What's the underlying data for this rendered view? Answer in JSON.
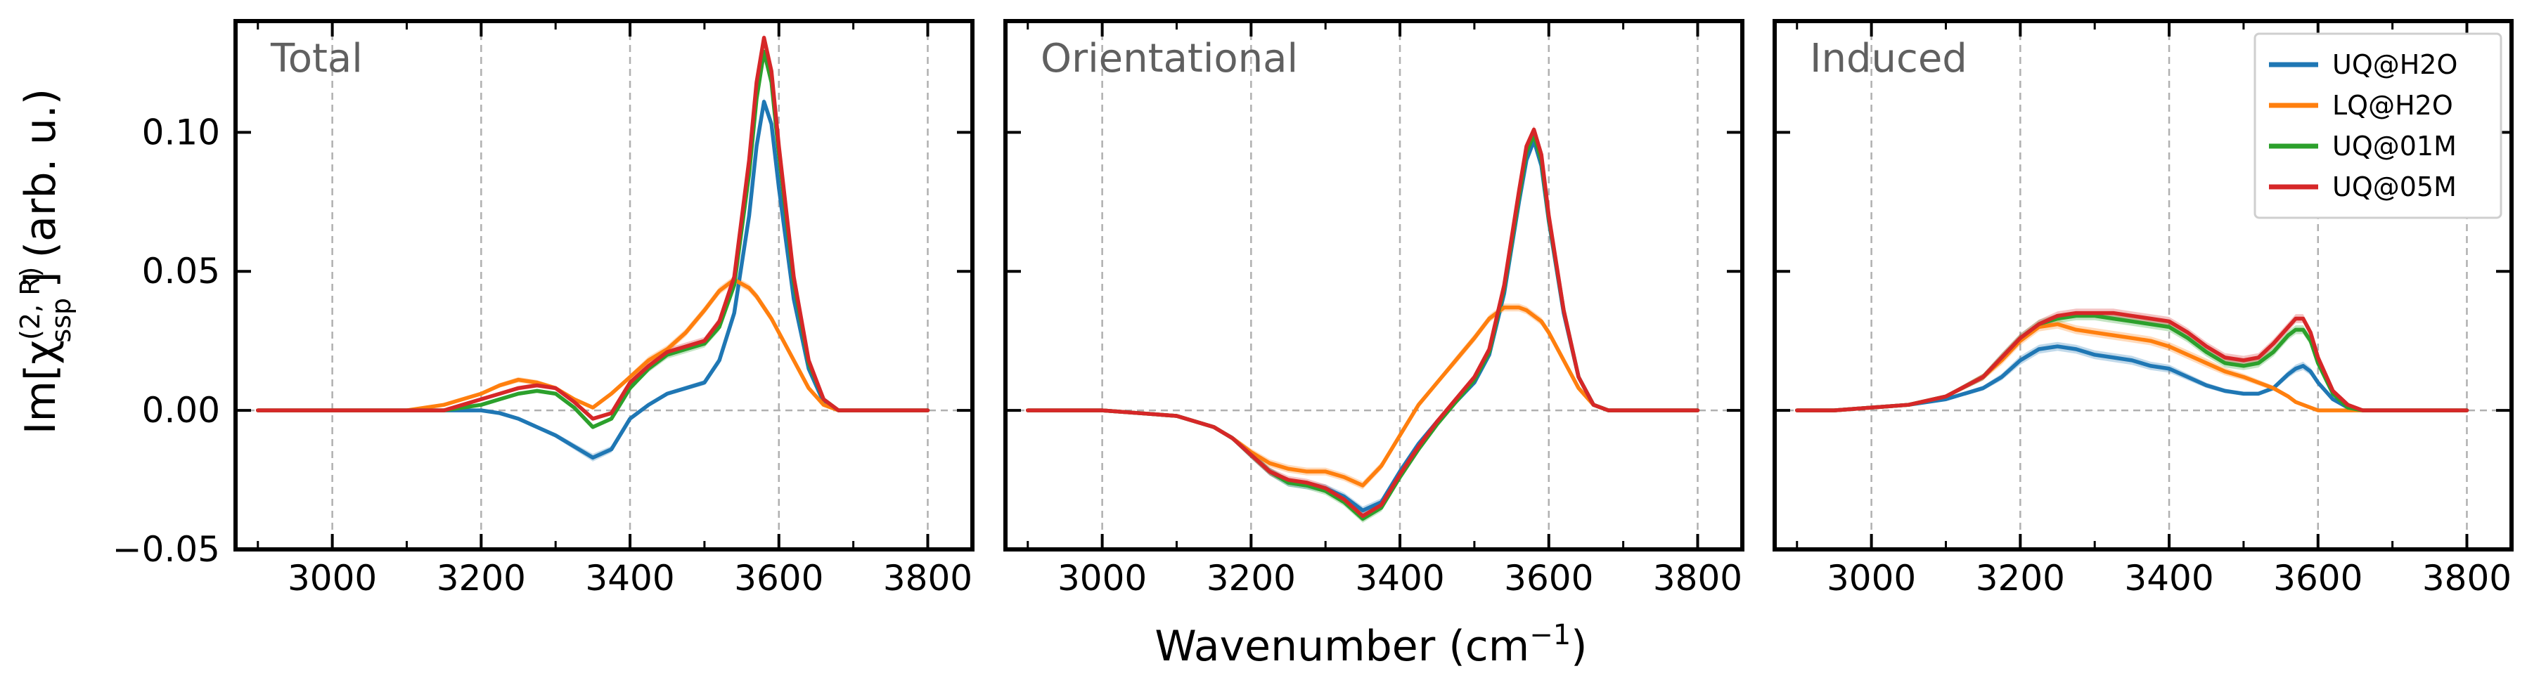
{
  "chart_data": {
    "type": "line",
    "ylabel": "Im[χ(2,R)ssp] (arb. u.)",
    "ylabel_parts": {
      "prefix": "Im[χ",
      "sup": "(2, R)",
      "sub": "ssp",
      "suffix": "] (arb. u.)"
    },
    "xlabel": "Wavenumber (cm⁻¹)",
    "xlabel_parts": {
      "main": "Wavenumber (cm",
      "sup": "−1",
      "close": ")"
    },
    "xlim": [
      2870,
      3860
    ],
    "ylim": [
      -0.05,
      0.14
    ],
    "xticks": [
      3000,
      3200,
      3400,
      3600,
      3800
    ],
    "xtick_labels": [
      "3000",
      "3200",
      "3400",
      "3600",
      "3800"
    ],
    "yticks": [
      -0.05,
      0.0,
      0.05,
      0.1
    ],
    "ytick_labels": [
      "−0.05",
      "0.00",
      "0.05",
      "0.10"
    ],
    "grid": true,
    "legend_position": "top-right (Induced panel)",
    "legend": [
      "UQ@H2O",
      "LQ@H2O",
      "UQ@01M",
      "UQ@05M"
    ],
    "colors": {
      "UQ@H2O": "#1f77b4",
      "LQ@H2O": "#ff7f0e",
      "UQ@01M": "#2ca02c",
      "UQ@05M": "#d62728"
    },
    "x": [
      2900,
      2950,
      3000,
      3050,
      3100,
      3150,
      3175,
      3200,
      3225,
      3250,
      3275,
      3300,
      3325,
      3350,
      3375,
      3400,
      3425,
      3450,
      3475,
      3500,
      3520,
      3540,
      3560,
      3570,
      3580,
      3590,
      3600,
      3620,
      3640,
      3660,
      3680,
      3700,
      3750,
      3800
    ],
    "panels": [
      {
        "title": "Total",
        "series": [
          {
            "name": "UQ@H2O",
            "values": [
              0.0,
              0.0,
              0.0,
              0.0,
              0.0,
              0.0,
              0.0,
              0.0,
              -0.001,
              -0.003,
              -0.006,
              -0.009,
              -0.013,
              -0.017,
              -0.014,
              -0.003,
              0.002,
              0.006,
              0.008,
              0.01,
              0.018,
              0.035,
              0.07,
              0.095,
              0.111,
              0.103,
              0.08,
              0.04,
              0.015,
              0.003,
              0.0,
              0.0,
              0.0,
              0.0
            ]
          },
          {
            "name": "LQ@H2O",
            "values": [
              0.0,
              0.0,
              0.0,
              0.0,
              0.0,
              0.002,
              0.004,
              0.006,
              0.009,
              0.011,
              0.01,
              0.008,
              0.004,
              0.001,
              0.006,
              0.012,
              0.018,
              0.022,
              0.028,
              0.036,
              0.043,
              0.047,
              0.044,
              0.041,
              0.037,
              0.033,
              0.028,
              0.018,
              0.008,
              0.002,
              0.0,
              0.0,
              0.0,
              0.0
            ]
          },
          {
            "name": "UQ@01M",
            "values": [
              0.0,
              0.0,
              0.0,
              0.0,
              0.0,
              0.0,
              0.001,
              0.002,
              0.004,
              0.006,
              0.007,
              0.006,
              0.001,
              -0.006,
              -0.003,
              0.008,
              0.015,
              0.02,
              0.022,
              0.024,
              0.03,
              0.045,
              0.085,
              0.112,
              0.129,
              0.118,
              0.092,
              0.046,
              0.017,
              0.004,
              0.0,
              0.0,
              0.0,
              0.0
            ]
          },
          {
            "name": "UQ@05M",
            "values": [
              0.0,
              0.0,
              0.0,
              0.0,
              0.0,
              0.0,
              0.002,
              0.004,
              0.006,
              0.008,
              0.009,
              0.008,
              0.003,
              -0.003,
              -0.001,
              0.01,
              0.016,
              0.021,
              0.023,
              0.025,
              0.032,
              0.048,
              0.09,
              0.118,
              0.134,
              0.122,
              0.095,
              0.048,
              0.018,
              0.004,
              0.0,
              0.0,
              0.0,
              0.0
            ]
          }
        ]
      },
      {
        "title": "Orientational",
        "series": [
          {
            "name": "UQ@H2O",
            "values": [
              0.0,
              0.0,
              0.0,
              -0.001,
              -0.002,
              -0.006,
              -0.01,
              -0.016,
              -0.022,
              -0.026,
              -0.027,
              -0.028,
              -0.031,
              -0.036,
              -0.033,
              -0.022,
              -0.012,
              -0.004,
              0.003,
              0.01,
              0.02,
              0.042,
              0.075,
              0.09,
              0.097,
              0.088,
              0.068,
              0.035,
              0.012,
              0.002,
              0.0,
              0.0,
              0.0,
              0.0
            ]
          },
          {
            "name": "LQ@H2O",
            "values": [
              0.0,
              0.0,
              0.0,
              -0.001,
              -0.002,
              -0.006,
              -0.01,
              -0.015,
              -0.019,
              -0.021,
              -0.022,
              -0.022,
              -0.024,
              -0.027,
              -0.02,
              -0.009,
              0.002,
              0.01,
              0.018,
              0.026,
              0.033,
              0.037,
              0.037,
              0.036,
              0.034,
              0.032,
              0.028,
              0.018,
              0.008,
              0.002,
              0.0,
              0.0,
              0.0,
              0.0
            ]
          },
          {
            "name": "UQ@01M",
            "values": [
              0.0,
              0.0,
              0.0,
              -0.001,
              -0.002,
              -0.006,
              -0.01,
              -0.016,
              -0.022,
              -0.026,
              -0.027,
              -0.029,
              -0.033,
              -0.039,
              -0.035,
              -0.024,
              -0.014,
              -0.005,
              0.003,
              0.011,
              0.021,
              0.044,
              0.077,
              0.093,
              0.099,
              0.09,
              0.069,
              0.036,
              0.012,
              0.002,
              0.0,
              0.0,
              0.0,
              0.0
            ]
          },
          {
            "name": "UQ@05M",
            "values": [
              0.0,
              0.0,
              0.0,
              -0.001,
              -0.002,
              -0.006,
              -0.01,
              -0.016,
              -0.022,
              -0.025,
              -0.026,
              -0.028,
              -0.032,
              -0.038,
              -0.034,
              -0.023,
              -0.013,
              -0.004,
              0.004,
              0.012,
              0.022,
              0.045,
              0.079,
              0.095,
              0.101,
              0.092,
              0.07,
              0.036,
              0.012,
              0.002,
              0.0,
              0.0,
              0.0,
              0.0
            ]
          }
        ]
      },
      {
        "title": "Induced",
        "series": [
          {
            "name": "UQ@H2O",
            "values": [
              0.0,
              0.0,
              0.001,
              0.002,
              0.004,
              0.008,
              0.012,
              0.018,
              0.022,
              0.023,
              0.022,
              0.02,
              0.019,
              0.018,
              0.016,
              0.015,
              0.012,
              0.009,
              0.007,
              0.006,
              0.006,
              0.008,
              0.013,
              0.015,
              0.016,
              0.014,
              0.01,
              0.004,
              0.001,
              0.0,
              0.0,
              0.0,
              0.0,
              0.0
            ]
          },
          {
            "name": "LQ@H2O",
            "values": [
              0.0,
              0.0,
              0.001,
              0.002,
              0.005,
              0.012,
              0.018,
              0.025,
              0.03,
              0.031,
              0.029,
              0.028,
              0.027,
              0.026,
              0.025,
              0.023,
              0.02,
              0.017,
              0.014,
              0.012,
              0.01,
              0.008,
              0.005,
              0.003,
              0.002,
              0.001,
              0.0,
              0.0,
              0.0,
              0.0,
              0.0,
              0.0,
              0.0,
              0.0
            ]
          },
          {
            "name": "UQ@01M",
            "values": [
              0.0,
              0.0,
              0.001,
              0.002,
              0.005,
              0.012,
              0.019,
              0.026,
              0.031,
              0.033,
              0.034,
              0.034,
              0.033,
              0.032,
              0.031,
              0.03,
              0.026,
              0.021,
              0.017,
              0.016,
              0.017,
              0.021,
              0.027,
              0.029,
              0.029,
              0.025,
              0.017,
              0.006,
              0.001,
              0.0,
              0.0,
              0.0,
              0.0,
              0.0
            ]
          },
          {
            "name": "UQ@05M",
            "values": [
              0.0,
              0.0,
              0.001,
              0.002,
              0.005,
              0.012,
              0.019,
              0.026,
              0.031,
              0.034,
              0.035,
              0.035,
              0.035,
              0.034,
              0.033,
              0.032,
              0.028,
              0.023,
              0.019,
              0.018,
              0.019,
              0.024,
              0.03,
              0.033,
              0.033,
              0.028,
              0.019,
              0.007,
              0.002,
              0.0,
              0.0,
              0.0,
              0.0,
              0.0
            ]
          }
        ]
      }
    ]
  }
}
